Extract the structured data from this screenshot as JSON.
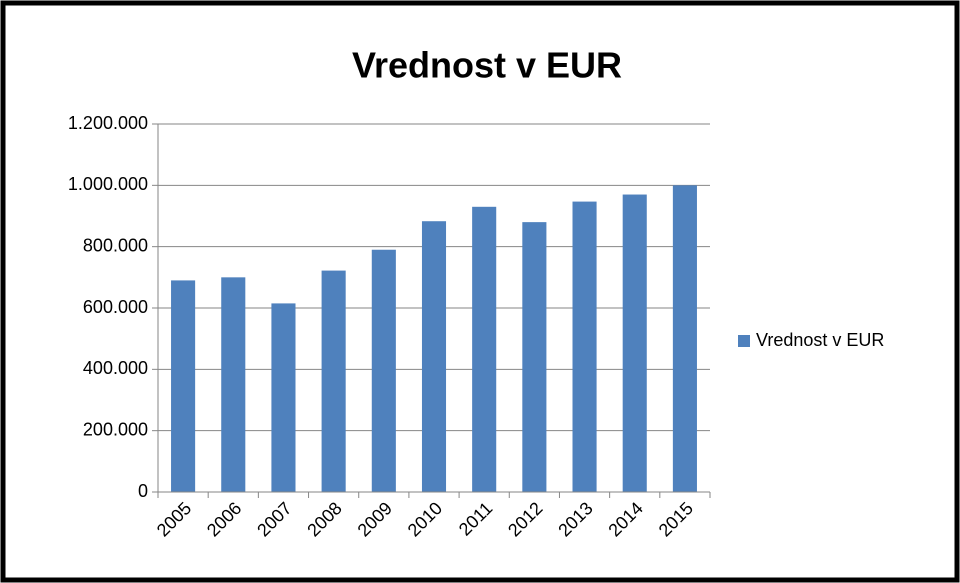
{
  "chart_data": {
    "type": "bar",
    "title": "Vrednost v EUR",
    "categories": [
      "2005",
      "2006",
      "2007",
      "2008",
      "2009",
      "2010",
      "2011",
      "2012",
      "2013",
      "2014",
      "2015"
    ],
    "series": [
      {
        "name": "Vrednost v EUR",
        "color": "#4f81bd",
        "values": [
          690000,
          700000,
          615000,
          722000,
          790000,
          883000,
          930000,
          880000,
          947000,
          970000,
          1000000
        ]
      }
    ],
    "ylim": [
      0,
      1200000
    ],
    "yticks": [
      0,
      {
        "value": 200000,
        "label": "200.000"
      },
      {
        "value": 400000,
        "label": "400.000"
      },
      {
        "value": 600000,
        "label": "600.000"
      },
      {
        "value": 800000,
        "label": "800.000"
      },
      {
        "value": 1000000,
        "label": "1.000.000"
      },
      {
        "value": 1200000,
        "label": "1.200.000"
      }
    ],
    "grid": true,
    "legend": "right"
  }
}
